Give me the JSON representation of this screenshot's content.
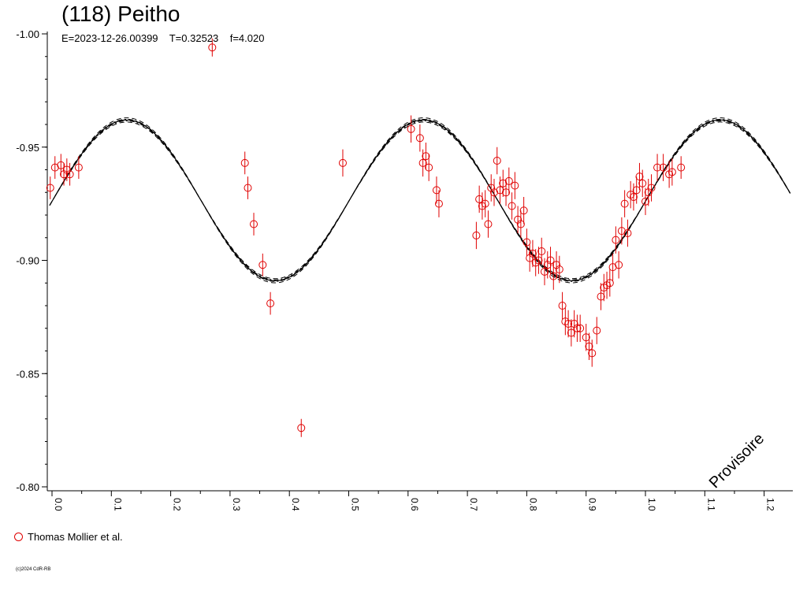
{
  "title": "(118) Peitho",
  "subtitle": "E=2023-12-26.00399    T=0.32523    f=4.020",
  "legend": {
    "label": "Thomas Mollier et al.",
    "color": "#e00000"
  },
  "copyright": "(c)2024 CdR-RB",
  "watermark": "Provisoire",
  "chart_data": {
    "type": "scatter",
    "title": "(118) Peitho",
    "ylim": [
      -0.8,
      -1.0
    ],
    "xlim": [
      -0.02,
      1.25
    ],
    "y_ticks": [
      "-1.00",
      "-0.95",
      "-0.90",
      "-0.85",
      "-0.80"
    ],
    "y_tick_values": [
      -1.0,
      -0.95,
      -0.9,
      -0.85,
      -0.8
    ],
    "x_ticks": [
      "0.0",
      "0.1",
      "0.2",
      "0.3",
      "0.4",
      "0.5",
      "0.6",
      "0.7",
      "0.8",
      "0.9",
      "1.0",
      "1.1",
      "1.2"
    ],
    "x_tick_values": [
      0.0,
      0.1,
      0.2,
      0.3,
      0.4,
      0.5,
      0.6,
      0.7,
      0.8,
      0.9,
      1.0,
      1.1,
      1.2
    ],
    "grid": false,
    "legend_position": "bottom-left",
    "model": {
      "mean": -0.9265,
      "amplitude": 0.0355,
      "phase_of_max": 0.126,
      "harmonics": 2,
      "period_in_phase": 0.5,
      "envelope_offsets": [
        -0.0065,
        -0.003,
        0.0,
        0.002,
        0.0065
      ]
    },
    "series": [
      {
        "name": "Thomas Mollier et al.",
        "color": "#e00000",
        "points": [
          [
            -0.003,
            -0.932,
            0.005
          ],
          [
            0.005,
            -0.941,
            0.005
          ],
          [
            0.015,
            -0.942,
            0.005
          ],
          [
            0.02,
            -0.938,
            0.005
          ],
          [
            0.025,
            -0.94,
            0.005
          ],
          [
            0.03,
            -0.938,
            0.005
          ],
          [
            0.045,
            -0.941,
            0.005
          ],
          [
            0.27,
            -0.994,
            0.004
          ],
          [
            0.325,
            -0.943,
            0.005
          ],
          [
            0.33,
            -0.932,
            0.005
          ],
          [
            0.34,
            -0.916,
            0.005
          ],
          [
            0.355,
            -0.898,
            0.005
          ],
          [
            0.368,
            -0.881,
            0.005
          ],
          [
            0.42,
            -0.826,
            0.004
          ],
          [
            0.49,
            -0.943,
            0.006
          ],
          [
            0.605,
            -0.958,
            0.006
          ],
          [
            0.62,
            -0.954,
            0.006
          ],
          [
            0.625,
            -0.943,
            0.006
          ],
          [
            0.63,
            -0.946,
            0.006
          ],
          [
            0.635,
            -0.941,
            0.006
          ],
          [
            0.648,
            -0.931,
            0.006
          ],
          [
            0.652,
            -0.925,
            0.006
          ],
          [
            0.715,
            -0.911,
            0.006
          ],
          [
            0.72,
            -0.927,
            0.006
          ],
          [
            0.725,
            -0.924,
            0.006
          ],
          [
            0.73,
            -0.925,
            0.006
          ],
          [
            0.735,
            -0.916,
            0.006
          ],
          [
            0.74,
            -0.932,
            0.006
          ],
          [
            0.745,
            -0.93,
            0.006
          ],
          [
            0.75,
            -0.944,
            0.006
          ],
          [
            0.755,
            -0.931,
            0.006
          ],
          [
            0.76,
            -0.934,
            0.006
          ],
          [
            0.765,
            -0.93,
            0.006
          ],
          [
            0.77,
            -0.935,
            0.006
          ],
          [
            0.775,
            -0.924,
            0.006
          ],
          [
            0.78,
            -0.933,
            0.006
          ],
          [
            0.785,
            -0.918,
            0.006
          ],
          [
            0.79,
            -0.916,
            0.006
          ],
          [
            0.795,
            -0.922,
            0.006
          ],
          [
            0.8,
            -0.908,
            0.006
          ],
          [
            0.805,
            -0.901,
            0.006
          ],
          [
            0.81,
            -0.903,
            0.006
          ],
          [
            0.815,
            -0.899,
            0.006
          ],
          [
            0.82,
            -0.9,
            0.006
          ],
          [
            0.825,
            -0.904,
            0.006
          ],
          [
            0.83,
            -0.895,
            0.006
          ],
          [
            0.835,
            -0.898,
            0.006
          ],
          [
            0.84,
            -0.9,
            0.006
          ],
          [
            0.845,
            -0.893,
            0.006
          ],
          [
            0.85,
            -0.898,
            0.006
          ],
          [
            0.855,
            -0.896,
            0.006
          ],
          [
            0.86,
            -0.88,
            0.006
          ],
          [
            0.865,
            -0.873,
            0.006
          ],
          [
            0.87,
            -0.872,
            0.006
          ],
          [
            0.875,
            -0.868,
            0.006
          ],
          [
            0.88,
            -0.872,
            0.006
          ],
          [
            0.885,
            -0.87,
            0.006
          ],
          [
            0.89,
            -0.87,
            0.006
          ],
          [
            0.9,
            -0.866,
            0.006
          ],
          [
            0.905,
            -0.862,
            0.006
          ],
          [
            0.91,
            -0.859,
            0.006
          ],
          [
            0.918,
            -0.869,
            0.006
          ],
          [
            0.925,
            -0.884,
            0.006
          ],
          [
            0.93,
            -0.888,
            0.006
          ],
          [
            0.935,
            -0.889,
            0.006
          ],
          [
            0.94,
            -0.89,
            0.006
          ],
          [
            0.945,
            -0.897,
            0.006
          ],
          [
            0.95,
            -0.909,
            0.006
          ],
          [
            0.955,
            -0.898,
            0.006
          ],
          [
            0.96,
            -0.913,
            0.006
          ],
          [
            0.965,
            -0.925,
            0.006
          ],
          [
            0.97,
            -0.912,
            0.006
          ],
          [
            0.975,
            -0.929,
            0.006
          ],
          [
            0.98,
            -0.928,
            0.006
          ],
          [
            0.985,
            -0.931,
            0.006
          ],
          [
            0.99,
            -0.937,
            0.006
          ],
          [
            0.995,
            -0.934,
            0.006
          ],
          [
            1.0,
            -0.926,
            0.006
          ],
          [
            1.005,
            -0.93,
            0.006
          ],
          [
            1.01,
            -0.932,
            0.006
          ],
          [
            1.02,
            -0.941,
            0.006
          ],
          [
            1.03,
            -0.941,
            0.006
          ],
          [
            1.04,
            -0.938,
            0.006
          ],
          [
            1.045,
            -0.939,
            0.006
          ],
          [
            1.06,
            -0.941,
            0.005
          ]
        ]
      }
    ]
  }
}
